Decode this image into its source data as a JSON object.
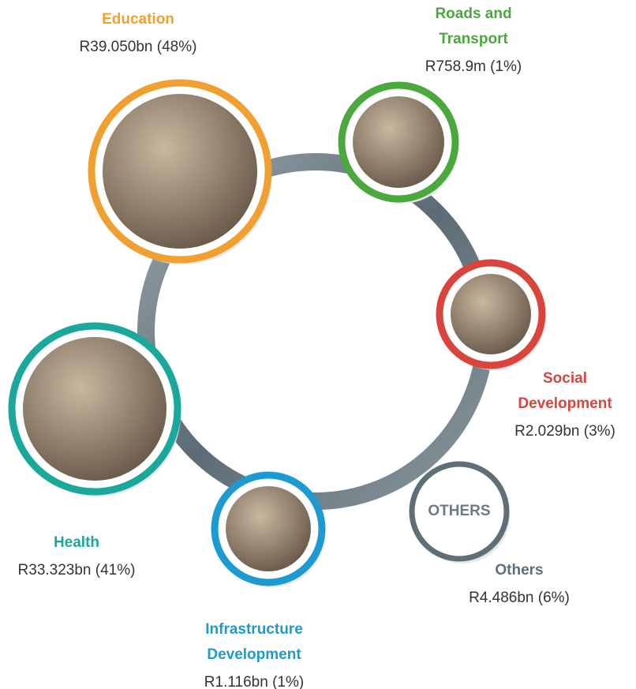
{
  "nodes": [
    {
      "title_lines": [
        "Education"
      ],
      "amount": "R39.050bn (48%)"
    },
    {
      "title_lines": [
        "Roads and",
        "Transport"
      ],
      "amount": "R758.9m (1%)"
    },
    {
      "title_lines": [
        "Social",
        "Development"
      ],
      "amount": "R2.029bn (3%)"
    },
    {
      "title_lines": [
        "Health"
      ],
      "amount": "R33.323bn (41%)"
    },
    {
      "title_lines": [
        "Infrastructure",
        "Development"
      ],
      "amount": "R1.116bn (1%)"
    },
    {
      "title_lines": [
        "Others"
      ],
      "amount": "R4.486bn (6%)",
      "badge": "OTHERS"
    }
  ]
}
